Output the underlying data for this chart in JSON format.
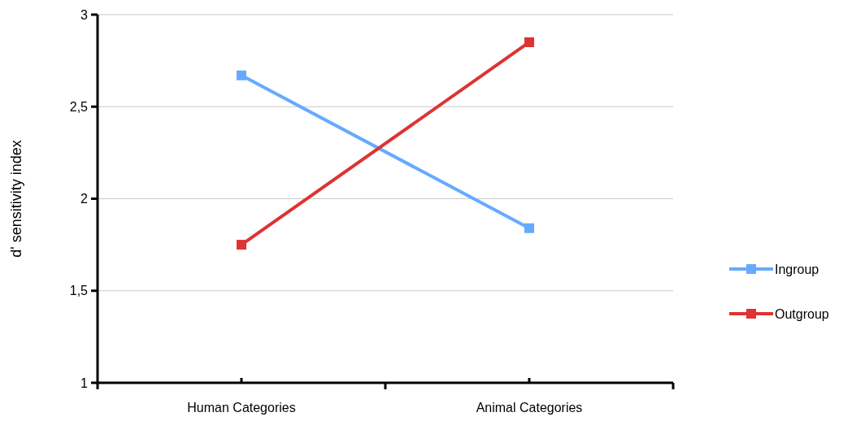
{
  "chart_data": {
    "type": "line",
    "ylabel": "d' sensitivity index",
    "categories": [
      "Human Categories",
      "Animal Categories"
    ],
    "series": [
      {
        "name": "Ingroup",
        "color": "#66aaff",
        "values": [
          2.67,
          1.84
        ]
      },
      {
        "name": "Outgroup",
        "color": "#dd3333",
        "values": [
          1.75,
          2.85
        ]
      }
    ],
    "ylim": [
      1,
      3
    ],
    "yticks": [
      1,
      {
        "value": 1.5,
        "label": "1,5"
      },
      2,
      {
        "value": 2.5,
        "label": "2,5"
      },
      3
    ],
    "grid": "y",
    "legend": "right",
    "marker": "square",
    "line_style": "solid"
  }
}
